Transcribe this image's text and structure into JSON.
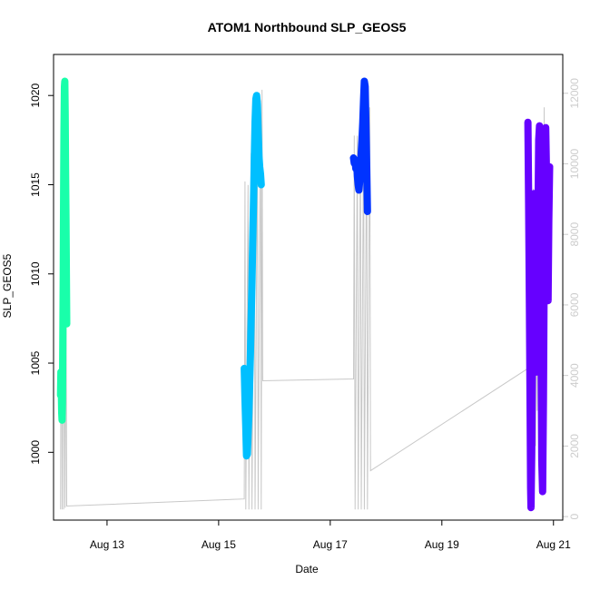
{
  "chart_data": {
    "type": "line",
    "title": "ATOM1 Northbound SLP_GEOS5",
    "xlabel": "Date",
    "ylabel": "SLP_GEOS5",
    "x_axis": {
      "type": "date",
      "range": [
        "2023-08-12T01:00",
        "2023-08-21T04:00"
      ],
      "ticks": [
        {
          "value": "2023-08-13",
          "label": "Aug 13"
        },
        {
          "value": "2023-08-15",
          "label": "Aug 15"
        },
        {
          "value": "2023-08-17",
          "label": "Aug 17"
        },
        {
          "value": "2023-08-19",
          "label": "Aug 19"
        },
        {
          "value": "2023-08-21",
          "label": "Aug 21"
        }
      ]
    },
    "y_left": {
      "range": [
        996.2,
        1022.3
      ],
      "ticks": [
        1000,
        1005,
        1010,
        1015,
        1020
      ]
    },
    "y_right": {
      "label": "",
      "range": [
        -100,
        13100
      ],
      "ticks": [
        0,
        2000,
        4000,
        6000,
        8000,
        10000,
        12000
      ],
      "color": "#cccccc"
    },
    "grid": false,
    "legend": "none",
    "secondary_series": {
      "color": "#c8c8c8",
      "points": [
        [
          "2023-08-12T04:00",
          200
        ],
        [
          "2023-08-12T04:20",
          9800
        ],
        [
          "2023-08-12T04:40",
          200
        ],
        [
          "2023-08-12T05:00",
          11600
        ],
        [
          "2023-08-12T05:20",
          200
        ],
        [
          "2023-08-12T05:40",
          8400
        ],
        [
          "2023-08-12T06:00",
          250
        ],
        [
          "2023-08-12T06:20",
          7400
        ],
        [
          "2023-08-12T06:40",
          300
        ],
        [
          "2023-08-15T11:00",
          500
        ],
        [
          "2023-08-15T11:20",
          9500
        ],
        [
          "2023-08-15T11:40",
          200
        ],
        [
          "2023-08-15T12:40",
          9400
        ],
        [
          "2023-08-15T13:00",
          200
        ],
        [
          "2023-08-15T14:00",
          10300
        ],
        [
          "2023-08-15T14:20",
          200
        ],
        [
          "2023-08-15T15:20",
          10600
        ],
        [
          "2023-08-15T15:40",
          200
        ],
        [
          "2023-08-15T16:40",
          11000
        ],
        [
          "2023-08-15T17:00",
          200
        ],
        [
          "2023-08-15T18:00",
          11800
        ],
        [
          "2023-08-15T18:20",
          200
        ],
        [
          "2023-08-15T18:40",
          12100
        ],
        [
          "2023-08-15T19:00",
          3850
        ],
        [
          "2023-08-17T10:00",
          3900
        ],
        [
          "2023-08-17T10:20",
          10800
        ],
        [
          "2023-08-17T10:40",
          200
        ],
        [
          "2023-08-17T11:40",
          10800
        ],
        [
          "2023-08-17T12:00",
          200
        ],
        [
          "2023-08-17T13:00",
          10900
        ],
        [
          "2023-08-17T13:20",
          200
        ],
        [
          "2023-08-17T14:20",
          11200
        ],
        [
          "2023-08-17T14:40",
          200
        ],
        [
          "2023-08-17T15:40",
          11400
        ],
        [
          "2023-08-17T16:00",
          200
        ],
        [
          "2023-08-17T17:00",
          11600
        ],
        [
          "2023-08-17T17:20",
          1300
        ],
        [
          "2023-08-20T13:00",
          4200
        ],
        [
          "2023-08-20T14:00",
          4600
        ],
        [
          "2023-08-20T14:20",
          9800
        ],
        [
          "2023-08-20T14:40",
          900
        ],
        [
          "2023-08-20T15:20",
          9300
        ],
        [
          "2023-08-20T15:40",
          1200
        ],
        [
          "2023-08-20T16:00",
          9000
        ],
        [
          "2023-08-20T16:20",
          2000
        ],
        [
          "2023-08-20T16:40",
          8600
        ],
        [
          "2023-08-20T17:00",
          3000
        ],
        [
          "2023-08-20T17:20",
          8800
        ],
        [
          "2023-08-20T17:40",
          2600
        ],
        [
          "2023-08-20T18:00",
          9400
        ],
        [
          "2023-08-20T18:20",
          2200
        ],
        [
          "2023-08-20T18:40",
          10400
        ],
        [
          "2023-08-20T19:00",
          1500
        ],
        [
          "2023-08-20T19:20",
          11000
        ],
        [
          "2023-08-20T19:40",
          800
        ],
        [
          "2023-08-20T20:00",
          11600
        ],
        [
          "2023-08-20T20:20",
          1200
        ],
        [
          "2023-08-20T20:40",
          9500
        ]
      ]
    },
    "series": [
      {
        "color": "#19ffaa",
        "points": [
          [
            "2023-08-12T04:00",
            1003.2
          ],
          [
            "2023-08-12T04:10",
            1004.5
          ],
          [
            "2023-08-12T04:20",
            1003.6
          ],
          [
            "2023-08-12T04:30",
            1002.2
          ],
          [
            "2023-08-12T04:40",
            1001.8
          ],
          [
            "2023-08-12T04:50",
            1002.8
          ],
          [
            "2023-08-12T05:00",
            1006.0
          ],
          [
            "2023-08-12T05:10",
            1010.0
          ],
          [
            "2023-08-12T05:20",
            1014.5
          ],
          [
            "2023-08-12T05:30",
            1018.0
          ],
          [
            "2023-08-12T05:40",
            1020.5
          ],
          [
            "2023-08-12T05:50",
            1020.8
          ],
          [
            "2023-08-12T06:00",
            1019.0
          ],
          [
            "2023-08-12T06:10",
            1016.0
          ],
          [
            "2023-08-12T06:20",
            1013.0
          ],
          [
            "2023-08-12T06:30",
            1010.0
          ],
          [
            "2023-08-12T06:40",
            1007.2
          ]
        ]
      },
      {
        "color": "#00bfff",
        "points": [
          [
            "2023-08-15T11:00",
            1004.7
          ],
          [
            "2023-08-15T11:20",
            1003.0
          ],
          [
            "2023-08-15T11:40",
            1001.4
          ],
          [
            "2023-08-15T12:00",
            999.8
          ],
          [
            "2023-08-15T12:20",
            999.9
          ],
          [
            "2023-08-15T12:40",
            1001.0
          ],
          [
            "2023-08-15T13:00",
            1002.2
          ],
          [
            "2023-08-15T13:20",
            1003.8
          ],
          [
            "2023-08-15T13:40",
            1005.5
          ],
          [
            "2023-08-15T14:00",
            1007.5
          ],
          [
            "2023-08-15T14:20",
            1009.5
          ],
          [
            "2023-08-15T14:40",
            1011.8
          ],
          [
            "2023-08-15T15:00",
            1014.0
          ],
          [
            "2023-08-15T15:20",
            1016.5
          ],
          [
            "2023-08-15T15:40",
            1018.5
          ],
          [
            "2023-08-15T16:00",
            1019.8
          ],
          [
            "2023-08-15T16:20",
            1020.0
          ],
          [
            "2023-08-15T16:40",
            1019.5
          ],
          [
            "2023-08-15T17:00",
            1018.0
          ],
          [
            "2023-08-15T17:20",
            1016.6
          ],
          [
            "2023-08-15T17:40",
            1016.0
          ],
          [
            "2023-08-15T18:00",
            1015.6
          ],
          [
            "2023-08-15T18:20",
            1015.0
          ]
        ]
      },
      {
        "color": "#0033ff",
        "points": [
          [
            "2023-08-17T10:00",
            1016.5
          ],
          [
            "2023-08-17T10:20",
            1016.2
          ],
          [
            "2023-08-17T10:40",
            1016.4
          ],
          [
            "2023-08-17T11:00",
            1015.9
          ],
          [
            "2023-08-17T11:20",
            1016.2
          ],
          [
            "2023-08-17T11:40",
            1015.5
          ],
          [
            "2023-08-17T12:00",
            1015.0
          ],
          [
            "2023-08-17T12:20",
            1014.7
          ],
          [
            "2023-08-17T12:40",
            1015.2
          ],
          [
            "2023-08-17T13:00",
            1015.8
          ],
          [
            "2023-08-17T13:20",
            1016.8
          ],
          [
            "2023-08-17T13:40",
            1017.5
          ],
          [
            "2023-08-17T14:00",
            1018.5
          ],
          [
            "2023-08-17T14:20",
            1019.8
          ],
          [
            "2023-08-17T14:40",
            1020.8
          ],
          [
            "2023-08-17T15:00",
            1020.5
          ],
          [
            "2023-08-17T15:20",
            1018.5
          ],
          [
            "2023-08-17T15:40",
            1016.0
          ],
          [
            "2023-08-17T16:00",
            1013.5
          ]
        ]
      },
      {
        "color": "#6600ff",
        "points": [
          [
            "2023-08-20T13:00",
            1018.5
          ],
          [
            "2023-08-20T13:20",
            1014.0
          ],
          [
            "2023-08-20T13:40",
            1008.0
          ],
          [
            "2023-08-20T14:00",
            1002.0
          ],
          [
            "2023-08-20T14:10",
            998.0
          ],
          [
            "2023-08-20T14:20",
            996.9
          ],
          [
            "2023-08-20T14:40",
            1000.0
          ],
          [
            "2023-08-20T15:00",
            1006.0
          ],
          [
            "2023-08-20T15:20",
            1012.0
          ],
          [
            "2023-08-20T15:40",
            1014.5
          ],
          [
            "2023-08-20T16:00",
            1012.5
          ],
          [
            "2023-08-20T16:20",
            1008.0
          ],
          [
            "2023-08-20T16:40",
            1004.5
          ],
          [
            "2023-08-20T17:00",
            1008.0
          ],
          [
            "2023-08-20T17:20",
            1013.0
          ],
          [
            "2023-08-20T17:40",
            1017.5
          ],
          [
            "2023-08-20T18:00",
            1018.3
          ],
          [
            "2023-08-20T18:20",
            1014.0
          ],
          [
            "2023-08-20T18:40",
            1006.0
          ],
          [
            "2023-08-20T19:00",
            999.5
          ],
          [
            "2023-08-20T19:20",
            997.8
          ],
          [
            "2023-08-20T19:40",
            1003.0
          ],
          [
            "2023-08-20T20:00",
            1010.0
          ],
          [
            "2023-08-20T20:20",
            1016.0
          ],
          [
            "2023-08-20T20:40",
            1018.2
          ],
          [
            "2023-08-20T21:00",
            1015.5
          ],
          [
            "2023-08-20T21:20",
            1011.0
          ],
          [
            "2023-08-20T21:40",
            1008.5
          ],
          [
            "2023-08-20T22:00",
            1013.0
          ],
          [
            "2023-08-20T22:20",
            1016.0
          ]
        ]
      }
    ]
  }
}
